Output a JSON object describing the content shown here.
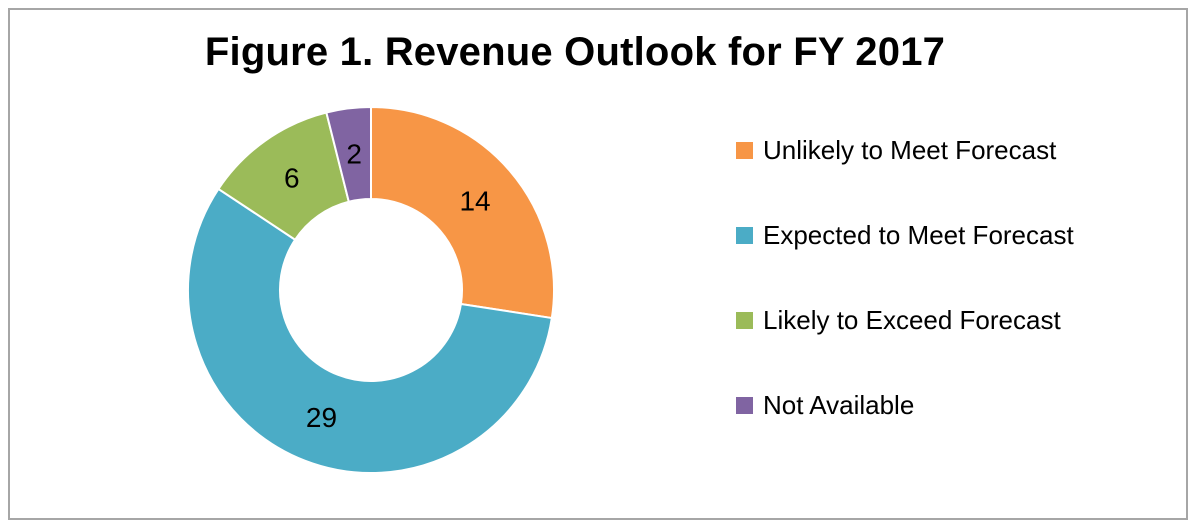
{
  "chart_data": {
    "type": "pie",
    "title": "Figure 1. Revenue Outlook for FY 2017",
    "categories": [
      "Unlikely to Meet Forecast",
      "Expected to Meet Forecast",
      "Likely to Exceed Forecast",
      "Not Available"
    ],
    "values": [
      14,
      29,
      6,
      2
    ],
    "colors": [
      "#f79646",
      "#4bacc6",
      "#9bbb59",
      "#8064a2"
    ],
    "donut": true,
    "legend_position": "right"
  }
}
